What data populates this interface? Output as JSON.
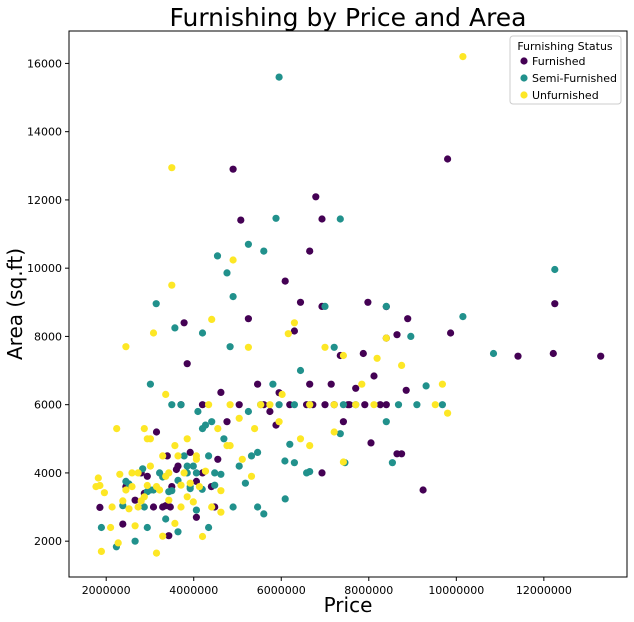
{
  "chart_data": {
    "type": "scatter",
    "title": "Furnishing by Price and Area",
    "xlabel": "Price",
    "ylabel": "Area (sq.ft)",
    "xlim": [
      1150000,
      13900000
    ],
    "ylim": [
      950,
      16950
    ],
    "xticks": [
      2000000,
      4000000,
      6000000,
      8000000,
      10000000,
      12000000
    ],
    "xtick_labels": [
      "2000000",
      "4000000",
      "6000000",
      "8000000",
      "10000000",
      "12000000"
    ],
    "yticks": [
      2000,
      4000,
      6000,
      8000,
      10000,
      12000,
      14000,
      16000
    ],
    "ytick_labels": [
      "2000",
      "4000",
      "6000",
      "8000",
      "10000",
      "12000",
      "14000",
      "16000"
    ],
    "grid": false,
    "legend": {
      "title": "Furnishing Status",
      "placement": "top-right"
    },
    "series": [
      {
        "name": "Furnished",
        "color": "#440154",
        "points": [
          [
            13300000,
            7420
          ],
          [
            12250000,
            8960
          ],
          [
            12215000,
            7500
          ],
          [
            11410000,
            7420
          ],
          [
            9870000,
            8100
          ],
          [
            9800000,
            13200
          ],
          [
            9240000,
            3500
          ],
          [
            8890000,
            8520
          ],
          [
            8855000,
            6420
          ],
          [
            8750000,
            4560
          ],
          [
            8645000,
            4560
          ],
          [
            8645000,
            8050
          ],
          [
            8400000,
            8875
          ],
          [
            8400000,
            7950
          ],
          [
            8260000,
            6000
          ],
          [
            8120000,
            6840
          ],
          [
            7980000,
            9000
          ],
          [
            7910000,
            6000
          ],
          [
            7875000,
            7500
          ],
          [
            7700000,
            6480
          ],
          [
            7560000,
            6000
          ],
          [
            7525000,
            6000
          ],
          [
            7350000,
            7440
          ],
          [
            7210000,
            6000
          ],
          [
            7140000,
            6600
          ],
          [
            6930000,
            11440
          ],
          [
            6930000,
            8880
          ],
          [
            6790000,
            12090
          ],
          [
            6650000,
            10500
          ],
          [
            6650000,
            6600
          ],
          [
            6440000,
            9000
          ],
          [
            6300000,
            8160
          ],
          [
            6195000,
            6000
          ],
          [
            6090000,
            9620
          ],
          [
            5950000,
            6350
          ],
          [
            5740000,
            5800
          ],
          [
            5600000,
            6000
          ],
          [
            5460000,
            6600
          ],
          [
            5250000,
            8520
          ],
          [
            5075000,
            11410
          ],
          [
            4900000,
            12900
          ],
          [
            4760000,
            5500
          ],
          [
            4550000,
            4400
          ],
          [
            4403000,
            3600
          ],
          [
            4200000,
            4000
          ],
          [
            4060000,
            3750
          ],
          [
            3920000,
            4600
          ],
          [
            3850000,
            7200
          ],
          [
            3780000,
            8400
          ],
          [
            3710000,
            6000
          ],
          [
            3605000,
            4100
          ],
          [
            3500000,
            3600
          ],
          [
            3430000,
            2160
          ],
          [
            3395000,
            4500
          ],
          [
            3290000,
            3000
          ],
          [
            3150000,
            5200
          ],
          [
            3080000,
            3000
          ],
          [
            2940000,
            3900
          ],
          [
            2800000,
            4000
          ],
          [
            2660000,
            3200
          ],
          [
            2450000,
            3600
          ],
          [
            2380000,
            2500
          ],
          [
            1855000,
            2990
          ],
          [
            6580000,
            6000
          ],
          [
            7000000,
            6000
          ],
          [
            8050000,
            4880
          ],
          [
            4200000,
            6000
          ],
          [
            4620000,
            6360
          ],
          [
            3465000,
            3000
          ],
          [
            2870000,
            3400
          ],
          [
            5880000,
            5400
          ],
          [
            7420000,
            5500
          ],
          [
            8400000,
            6000
          ],
          [
            6720000,
            6000
          ],
          [
            4480000,
            3000
          ],
          [
            3360000,
            3040
          ],
          [
            3640000,
            4200
          ],
          [
            4060000,
            2700
          ],
          [
            5040000,
            6000
          ],
          [
            6930000,
            4000
          ]
        ]
      },
      {
        "name": "Semi-Furnished",
        "color": "#21918c",
        "points": [
          [
            12250000,
            9960
          ],
          [
            10850000,
            7500
          ],
          [
            10150000,
            8580
          ],
          [
            9681000,
            6000
          ],
          [
            9310000,
            6550
          ],
          [
            9100000,
            6000
          ],
          [
            8960000,
            8000
          ],
          [
            8540000,
            4300
          ],
          [
            8400000,
            5500
          ],
          [
            8400000,
            8880
          ],
          [
            7455000,
            4300
          ],
          [
            7420000,
            6000
          ],
          [
            7350000,
            5150
          ],
          [
            7350000,
            11440
          ],
          [
            7210000,
            7680
          ],
          [
            7000000,
            8880
          ],
          [
            6650000,
            4040
          ],
          [
            6440000,
            7000
          ],
          [
            6300000,
            4300
          ],
          [
            6195000,
            4840
          ],
          [
            6083000,
            4350
          ],
          [
            5950000,
            15600
          ],
          [
            5880000,
            11460
          ],
          [
            5600000,
            10500
          ],
          [
            5530000,
            6000
          ],
          [
            5460000,
            4600
          ],
          [
            5250000,
            10700
          ],
          [
            4900000,
            9166
          ],
          [
            4830000,
            7700
          ],
          [
            4760000,
            9860
          ],
          [
            4690000,
            5000
          ],
          [
            4543000,
            10360
          ],
          [
            4480000,
            3640
          ],
          [
            4410000,
            5500
          ],
          [
            4340000,
            2400
          ],
          [
            4270000,
            5400
          ],
          [
            4193000,
            3520
          ],
          [
            4095000,
            5800
          ],
          [
            4060000,
            2910
          ],
          [
            3990000,
            4200
          ],
          [
            3920000,
            3600
          ],
          [
            3850000,
            4200
          ],
          [
            3780000,
            4500
          ],
          [
            3710000,
            6000
          ],
          [
            3640000,
            3780
          ],
          [
            3570000,
            8250
          ],
          [
            3500000,
            6000
          ],
          [
            3430000,
            3450
          ],
          [
            3360000,
            2650
          ],
          [
            3290000,
            3880
          ],
          [
            3220000,
            4000
          ],
          [
            3143000,
            8960
          ],
          [
            3080000,
            3500
          ],
          [
            3010000,
            6600
          ],
          [
            2940000,
            3450
          ],
          [
            2870000,
            3000
          ],
          [
            2835000,
            4120
          ],
          [
            2660000,
            2000
          ],
          [
            2520000,
            3675
          ],
          [
            2450000,
            3750
          ],
          [
            2380000,
            3040
          ],
          [
            2233000,
            1836
          ],
          [
            1890000,
            2400
          ],
          [
            5950000,
            6000
          ],
          [
            6300000,
            6000
          ],
          [
            6650000,
            6000
          ],
          [
            4200000,
            5300
          ],
          [
            5180000,
            3700
          ],
          [
            5320000,
            4500
          ],
          [
            5460000,
            3000
          ],
          [
            3850000,
            4000
          ],
          [
            4060000,
            4000
          ],
          [
            4340000,
            4500
          ],
          [
            4620000,
            3960
          ],
          [
            5040000,
            4200
          ],
          [
            3640000,
            2275
          ],
          [
            2940000,
            2400
          ],
          [
            3010000,
            3500
          ],
          [
            4900000,
            3000
          ],
          [
            5600000,
            2800
          ],
          [
            6580000,
            4000
          ],
          [
            7700000,
            6000
          ],
          [
            8680000,
            6000
          ],
          [
            4200000,
            8100
          ],
          [
            3500000,
            3480
          ],
          [
            3920000,
            3540
          ],
          [
            4480000,
            4000
          ],
          [
            5250000,
            5800
          ],
          [
            5810000,
            6600
          ],
          [
            6090000,
            3240
          ]
        ]
      },
      {
        "name": "Unfurnished",
        "color": "#fde725",
        "points": [
          [
            10150000,
            16200
          ],
          [
            9800000,
            5750
          ],
          [
            9681000,
            6600
          ],
          [
            8750000,
            7150
          ],
          [
            8400000,
            7950
          ],
          [
            8190000,
            7360
          ],
          [
            8120000,
            6000
          ],
          [
            7700000,
            6000
          ],
          [
            7420000,
            7440
          ],
          [
            7420000,
            4320
          ],
          [
            7210000,
            6000
          ],
          [
            7000000,
            7680
          ],
          [
            6650000,
            6000
          ],
          [
            6440000,
            5000
          ],
          [
            6300000,
            8400
          ],
          [
            6160000,
            8080
          ],
          [
            5950000,
            5500
          ],
          [
            5740000,
            6000
          ],
          [
            5530000,
            6000
          ],
          [
            5320000,
            3900
          ],
          [
            5250000,
            7680
          ],
          [
            5040000,
            5600
          ],
          [
            4900000,
            10240
          ],
          [
            4830000,
            6000
          ],
          [
            4760000,
            4800
          ],
          [
            4620000,
            3480
          ],
          [
            4550000,
            5300
          ],
          [
            4410000,
            8500
          ],
          [
            4340000,
            6000
          ],
          [
            4270000,
            4050
          ],
          [
            4200000,
            2136
          ],
          [
            4130000,
            3600
          ],
          [
            4060000,
            4400
          ],
          [
            3990000,
            3150
          ],
          [
            3920000,
            3700
          ],
          [
            3850000,
            5000
          ],
          [
            3780000,
            4000
          ],
          [
            3710000,
            3640
          ],
          [
            3640000,
            4500
          ],
          [
            3570000,
            2520
          ],
          [
            3500000,
            12944
          ],
          [
            3500000,
            9500
          ],
          [
            3430000,
            4000
          ],
          [
            3360000,
            3900
          ],
          [
            3290000,
            2145
          ],
          [
            3220000,
            3500
          ],
          [
            3150000,
            1650
          ],
          [
            3080000,
            8100
          ],
          [
            3010000,
            5000
          ],
          [
            2940000,
            3630
          ],
          [
            2870000,
            5300
          ],
          [
            2800000,
            3180
          ],
          [
            2730000,
            4000
          ],
          [
            2660000,
            2450
          ],
          [
            2590000,
            3600
          ],
          [
            2520000,
            2950
          ],
          [
            2450000,
            7700
          ],
          [
            2380000,
            3180
          ],
          [
            2310000,
            3960
          ],
          [
            2275000,
            1950
          ],
          [
            2240000,
            5300
          ],
          [
            2135000,
            3000
          ],
          [
            2100000,
            2400
          ],
          [
            1960000,
            3420
          ],
          [
            1890000,
            1700
          ],
          [
            1855000,
            3630
          ],
          [
            1820000,
            3850
          ],
          [
            1767150,
            3600
          ],
          [
            2450000,
            3500
          ],
          [
            2590000,
            4000
          ],
          [
            2730000,
            3000
          ],
          [
            2870000,
            3300
          ],
          [
            3010000,
            4200
          ],
          [
            3150000,
            3600
          ],
          [
            3290000,
            4500
          ],
          [
            3430000,
            3200
          ],
          [
            3570000,
            4800
          ],
          [
            3710000,
            3000
          ],
          [
            3850000,
            3300
          ],
          [
            4060000,
            4500
          ],
          [
            4410000,
            3000
          ],
          [
            4620000,
            2850
          ],
          [
            4830000,
            4800
          ],
          [
            5110000,
            4400
          ],
          [
            5390000,
            5300
          ],
          [
            6020000,
            6300
          ],
          [
            6650000,
            4800
          ],
          [
            7210000,
            5200
          ],
          [
            9520000,
            6000
          ],
          [
            7840000,
            6600
          ],
          [
            3360000,
            6300
          ],
          [
            2940000,
            5000
          ]
        ]
      }
    ]
  }
}
